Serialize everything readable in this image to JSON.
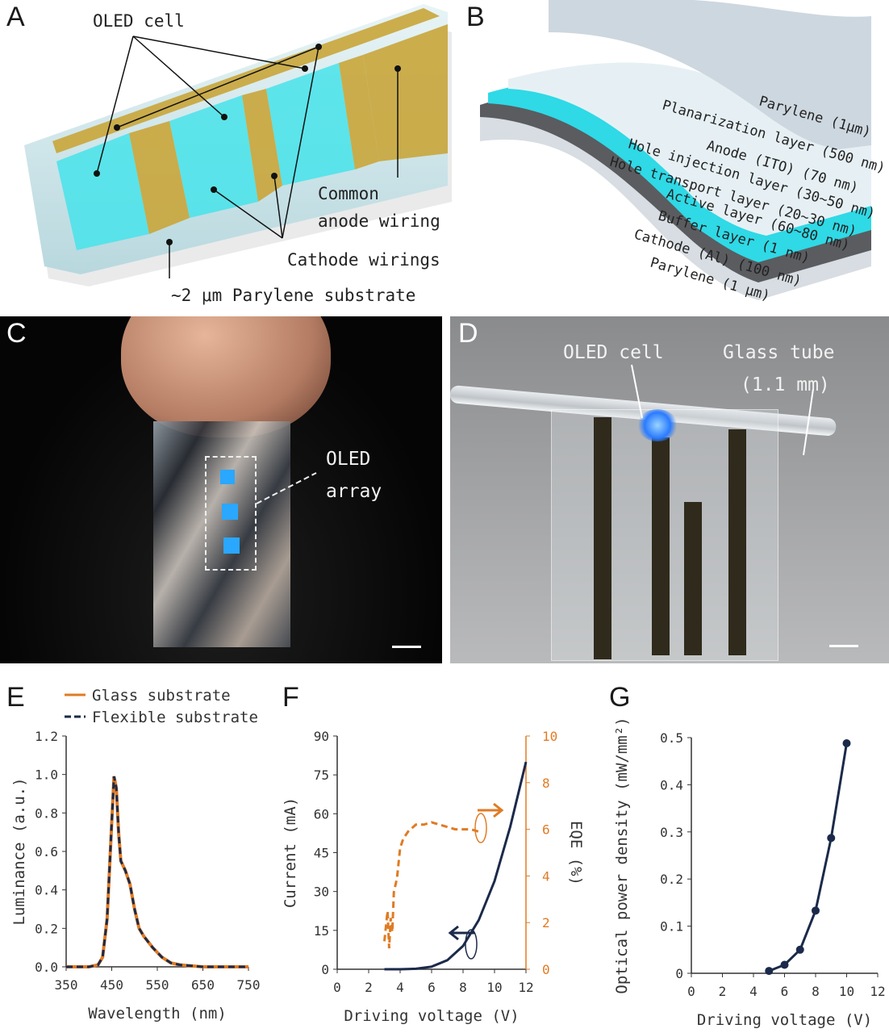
{
  "panels": {
    "A": {
      "letter": "A",
      "labels": {
        "oled_cell": "OLED cell",
        "common_anode_1": "Common",
        "common_anode_2": "anode wiring",
        "cathode_wirings": "Cathode wirings",
        "substrate": "~2 μm Parylene substrate"
      }
    },
    "B": {
      "letter": "B",
      "layers": [
        "Parylene (1μm)",
        "Planarization layer (500 nm)",
        "Anode (ITO) (70 nm)",
        "Hole injection layer (30∼50 nm)",
        "Hole transport layer (20∼30 nm)",
        "Active layer (60∼80 nm)",
        "Buffer layer (1 nm)",
        "Cathode (Al) (100 nm)",
        "Parylene (1 μm)"
      ]
    },
    "C": {
      "letter": "C",
      "label_1": "OLED",
      "label_2": "array"
    },
    "D": {
      "letter": "D",
      "oled_cell": "OLED cell",
      "glass_tube_1": "Glass tube",
      "glass_tube_2": "(1.1 mm)"
    },
    "E": {
      "letter": "E"
    },
    "F": {
      "letter": "F"
    },
    "G": {
      "letter": "G"
    }
  },
  "colors": {
    "orange": "#e07b24",
    "navy": "#1b2a4a",
    "cyan": "#3ee6ee",
    "gold": "#c9a227"
  },
  "chart_data": [
    {
      "panel": "E",
      "type": "line",
      "xlabel": "Wavelength (nm)",
      "ylabel": "Luminance (a.u.)",
      "xlim": [
        350,
        750
      ],
      "ylim": [
        0,
        1.2
      ],
      "xticks": [
        "350",
        "450",
        "550",
        "650",
        "750"
      ],
      "yticks": [
        "0.0",
        "0.2",
        "0.4",
        "0.6",
        "0.8",
        "1.0",
        "1.2"
      ],
      "legend": "top-left",
      "series": [
        {
          "name": "Glass substrate",
          "style": "solid",
          "color": "#e07b24",
          "x": [
            350,
            400,
            420,
            430,
            440,
            450,
            455,
            460,
            465,
            470,
            480,
            490,
            500,
            510,
            520,
            540,
            560,
            580,
            600,
            650,
            700,
            750
          ],
          "y": [
            0,
            0,
            0.01,
            0.05,
            0.25,
            0.75,
            0.99,
            0.93,
            0.7,
            0.55,
            0.5,
            0.43,
            0.3,
            0.2,
            0.16,
            0.1,
            0.05,
            0.02,
            0.01,
            0,
            0,
            0
          ]
        },
        {
          "name": "Flexible substrate",
          "style": "dashed",
          "color": "#1b2a4a",
          "x": [
            350,
            400,
            420,
            430,
            440,
            450,
            455,
            460,
            465,
            470,
            480,
            490,
            500,
            510,
            520,
            540,
            560,
            580,
            600,
            650,
            700,
            750
          ],
          "y": [
            0,
            0,
            0.01,
            0.05,
            0.25,
            0.75,
            0.99,
            0.93,
            0.7,
            0.55,
            0.5,
            0.43,
            0.3,
            0.2,
            0.16,
            0.1,
            0.05,
            0.02,
            0.01,
            0,
            0,
            0
          ]
        }
      ]
    },
    {
      "panel": "F",
      "type": "line",
      "xlabel": "Driving voltage (V)",
      "ylabel": "Current (mA)",
      "y2label": "EQE (%)",
      "xlim": [
        0,
        12
      ],
      "ylim": [
        0,
        90
      ],
      "y2lim": [
        0,
        10
      ],
      "xticks": [
        "0",
        "2",
        "4",
        "6",
        "8",
        "10",
        "12"
      ],
      "yticks": [
        "0",
        "15",
        "30",
        "45",
        "60",
        "75",
        "90"
      ],
      "y2ticks": [
        "0",
        "2",
        "4",
        "6",
        "8",
        "10"
      ],
      "series": [
        {
          "name": "",
          "axis": "left",
          "style": "solid",
          "color": "#1b2a4a",
          "x": [
            3,
            4,
            5,
            6,
            7,
            8,
            9,
            10,
            11,
            12
          ],
          "y": [
            0,
            0,
            0.2,
            1,
            3.5,
            9,
            19,
            34,
            55,
            80
          ]
        },
        {
          "name": "",
          "axis": "right",
          "style": "dashed",
          "color": "#e07b24",
          "x": [
            3,
            3.2,
            3.3,
            3.4,
            3.5,
            3.6,
            3.8,
            4.0,
            4.2,
            4.5,
            5,
            5.5,
            6,
            6.5,
            7,
            7.5,
            8,
            8.5,
            9
          ],
          "y": [
            1.2,
            2.5,
            0.9,
            2.2,
            1.6,
            3.3,
            3.9,
            5.2,
            5.6,
            5.9,
            6.2,
            6.2,
            6.3,
            6.2,
            6.1,
            6.0,
            6.0,
            6.0,
            5.9
          ]
        }
      ]
    },
    {
      "panel": "G",
      "type": "line",
      "xlabel": "Driving voltage (V)",
      "ylabel": "Optical power density (mW/mm²)",
      "xlim": [
        0,
        12
      ],
      "ylim": [
        0,
        0.5
      ],
      "xticks": [
        "0",
        "2",
        "4",
        "6",
        "8",
        "10",
        "12"
      ],
      "yticks": [
        "0",
        "0.1",
        "0.2",
        "0.3",
        "0.4",
        "0.5"
      ],
      "series": [
        {
          "name": "",
          "style": "solid-markers",
          "color": "#1b2a4a",
          "x": [
            5,
            6,
            7,
            8,
            9,
            10
          ],
          "y": [
            0.005,
            0.018,
            0.05,
            0.133,
            0.287,
            0.488
          ]
        }
      ]
    }
  ]
}
